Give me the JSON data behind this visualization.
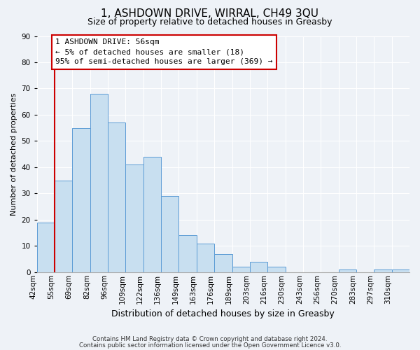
{
  "title": "1, ASHDOWN DRIVE, WIRRAL, CH49 3QU",
  "subtitle": "Size of property relative to detached houses in Greasby",
  "xlabel": "Distribution of detached houses by size in Greasby",
  "ylabel": "Number of detached properties",
  "bin_labels": [
    "42sqm",
    "55sqm",
    "69sqm",
    "82sqm",
    "96sqm",
    "109sqm",
    "122sqm",
    "136sqm",
    "149sqm",
    "163sqm",
    "176sqm",
    "189sqm",
    "203sqm",
    "216sqm",
    "230sqm",
    "243sqm",
    "256sqm",
    "270sqm",
    "283sqm",
    "297sqm",
    "310sqm"
  ],
  "bar_heights": [
    19,
    35,
    55,
    68,
    57,
    41,
    44,
    29,
    14,
    11,
    7,
    2,
    4,
    2,
    0,
    0,
    0,
    1,
    0,
    1,
    1
  ],
  "bar_color": "#c8dff0",
  "bar_edge_color": "#5b9bd5",
  "vline_color": "#cc0000",
  "vline_index": 1,
  "ylim": [
    0,
    90
  ],
  "yticks": [
    0,
    10,
    20,
    30,
    40,
    50,
    60,
    70,
    80,
    90
  ],
  "annotation_title": "1 ASHDOWN DRIVE: 56sqm",
  "annotation_line1": "← 5% of detached houses are smaller (18)",
  "annotation_line2": "95% of semi-detached houses are larger (369) →",
  "footnote1": "Contains HM Land Registry data © Crown copyright and database right 2024.",
  "footnote2": "Contains public sector information licensed under the Open Government Licence v3.0.",
  "background_color": "#eef2f7",
  "grid_color": "#ffffff",
  "title_fontsize": 11,
  "subtitle_fontsize": 9,
  "ylabel_fontsize": 8,
  "xlabel_fontsize": 9,
  "tick_fontsize": 7.5,
  "annot_fontsize": 8
}
